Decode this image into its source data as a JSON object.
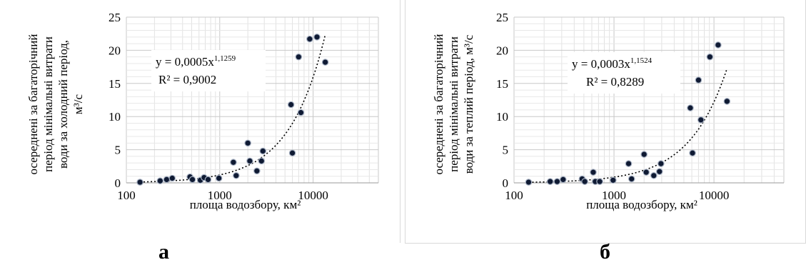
{
  "chart_data": [
    {
      "type": "scatter",
      "panel_label": "а",
      "ylabel_lines": [
        "осереднені за багаторічний",
        "період мінімальні витрати",
        "води за холодний період,",
        "м³/с"
      ],
      "xlabel": "площа водозбору,  км²",
      "x_scale": "log",
      "xlim": [
        100,
        50000
      ],
      "ylim": [
        0,
        25
      ],
      "x_ticks": [
        "100",
        "1000",
        "10000"
      ],
      "y_ticks": [
        "0",
        "5",
        "10",
        "15",
        "20",
        "25"
      ],
      "grid": true,
      "equation": "y = 0,0005x",
      "equation_exp": "1,1259",
      "r2": "R² = 0,9002",
      "trend": {
        "a": 0.0005,
        "b": 1.1259
      },
      "points": [
        [
          140,
          0.1
        ],
        [
          230,
          0.3
        ],
        [
          270,
          0.5
        ],
        [
          310,
          0.7
        ],
        [
          480,
          0.9
        ],
        [
          510,
          0.5
        ],
        [
          620,
          0.4
        ],
        [
          680,
          0.8
        ],
        [
          750,
          0.5
        ],
        [
          980,
          0.7
        ],
        [
          1400,
          3.1
        ],
        [
          1500,
          1.1
        ],
        [
          2000,
          6.0
        ],
        [
          2100,
          3.3
        ],
        [
          2500,
          1.8
        ],
        [
          2800,
          3.3
        ],
        [
          2900,
          4.8
        ],
        [
          5800,
          11.8
        ],
        [
          6000,
          4.5
        ],
        [
          7000,
          19.0
        ],
        [
          7400,
          10.6
        ],
        [
          9200,
          21.7
        ],
        [
          11000,
          22.0
        ],
        [
          13500,
          18.2
        ]
      ]
    },
    {
      "type": "scatter",
      "panel_label": "б",
      "ylabel_lines": [
        "осереднені за багаторічний",
        "період мінімальні витрати",
        "води за теплий період, м³/с"
      ],
      "xlabel": "площа водозбору,  км²",
      "x_scale": "log",
      "xlim": [
        100,
        50000
      ],
      "ylim": [
        0,
        25
      ],
      "x_ticks": [
        "100",
        "1000",
        "10000"
      ],
      "y_ticks": [
        "0",
        "5",
        "10",
        "15",
        "20",
        "25"
      ],
      "grid": true,
      "equation": "y = 0,0003x",
      "equation_exp": "1,1524",
      "r2": "R² = 0,8289",
      "trend": {
        "a": 0.0003,
        "b": 1.1524
      },
      "points": [
        [
          140,
          0.1
        ],
        [
          230,
          0.2
        ],
        [
          270,
          0.2
        ],
        [
          310,
          0.5
        ],
        [
          480,
          0.6
        ],
        [
          510,
          0.2
        ],
        [
          620,
          1.6
        ],
        [
          650,
          0.2
        ],
        [
          720,
          0.2
        ],
        [
          980,
          0.4
        ],
        [
          1400,
          2.9
        ],
        [
          1500,
          0.6
        ],
        [
          2000,
          4.3
        ],
        [
          2100,
          1.6
        ],
        [
          2500,
          1.1
        ],
        [
          2850,
          1.7
        ],
        [
          2950,
          2.9
        ],
        [
          5800,
          11.3
        ],
        [
          6100,
          4.5
        ],
        [
          7000,
          15.5
        ],
        [
          7400,
          9.5
        ],
        [
          9100,
          19.0
        ],
        [
          11000,
          20.8
        ],
        [
          13500,
          12.3
        ]
      ]
    }
  ]
}
